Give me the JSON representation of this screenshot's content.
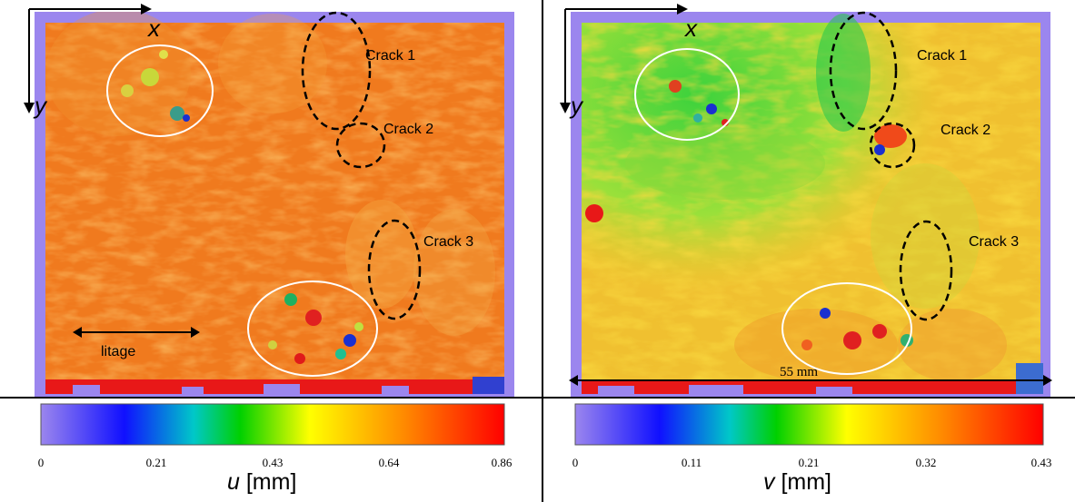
{
  "colors": {
    "frame": "#9b86ee",
    "crack_line": "#000000",
    "region_circle": "#ffffff"
  },
  "colormap": [
    "#9b86ee",
    "#1010ff",
    "#00c8c8",
    "#00d000",
    "#ffff00",
    "#ff8c00",
    "#ff0000"
  ],
  "left": {
    "axis_x": "x",
    "axis_y": "y",
    "cracks": [
      "Crack 1",
      "Crack 2",
      "Crack 3"
    ],
    "litage": "litage",
    "colorbar": {
      "ticks": [
        "0",
        "0.21",
        "0.43",
        "0.64",
        "0.86"
      ],
      "var": "u",
      "unit": "[mm]"
    }
  },
  "right": {
    "axis_x": "x",
    "axis_y": "y",
    "cracks": [
      "Crack 1",
      "Crack 2",
      "Crack 3"
    ],
    "scale": "55 mm",
    "colorbar": {
      "ticks": [
        "0",
        "0.11",
        "0.21",
        "0.32",
        "0.43"
      ],
      "var": "v",
      "unit": "[mm]"
    }
  }
}
